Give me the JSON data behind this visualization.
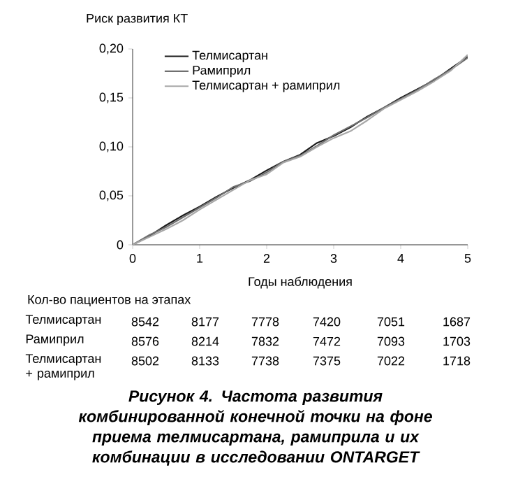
{
  "chart_data": {
    "type": "line",
    "title": "Рисунок 4. Частота развития комбинированной конечной точки на фоне приема телмисартана, рамиприла и их комбинации в исследовании ONTARGET",
    "ylabel": "Риск развития КТ",
    "xlabel": "Годы наблюдения",
    "x": [
      0,
      0.25,
      0.5,
      0.75,
      1,
      1.25,
      1.5,
      1.75,
      2,
      2.25,
      2.5,
      2.75,
      3,
      3.25,
      3.5,
      3.75,
      4,
      4.25,
      4.5,
      4.75,
      5
    ],
    "series": [
      {
        "name": "Телмисартан",
        "color": "#1a1a1a",
        "values": [
          0,
          0.009,
          0.02,
          0.03,
          0.039,
          0.049,
          0.058,
          0.066,
          0.076,
          0.085,
          0.092,
          0.104,
          0.111,
          0.12,
          0.131,
          0.14,
          0.15,
          0.159,
          0.168,
          0.18,
          0.192
        ]
      },
      {
        "name": "Рамиприл",
        "color": "#707070",
        "values": [
          0,
          0.01,
          0.018,
          0.028,
          0.038,
          0.048,
          0.059,
          0.065,
          0.074,
          0.085,
          0.091,
          0.101,
          0.112,
          0.121,
          0.13,
          0.14,
          0.149,
          0.158,
          0.169,
          0.179,
          0.191
        ]
      },
      {
        "name": "Телмисартан + рамиприл",
        "color": "#a8a8a8",
        "values": [
          0,
          0.008,
          0.016,
          0.025,
          0.036,
          0.046,
          0.056,
          0.066,
          0.072,
          0.084,
          0.09,
          0.1,
          0.109,
          0.116,
          0.127,
          0.139,
          0.148,
          0.157,
          0.167,
          0.178,
          0.194
        ]
      }
    ],
    "xlim": [
      0,
      5
    ],
    "ylim": [
      0,
      0.2
    ],
    "xticks": [
      0,
      1,
      2,
      3,
      4,
      5
    ],
    "yticks": [
      {
        "value": 0,
        "label": "0"
      },
      {
        "value": 0.05,
        "label": "0,05"
      },
      {
        "value": 0.1,
        "label": "0,10"
      },
      {
        "value": 0.15,
        "label": "0,15"
      },
      {
        "value": 0.2,
        "label": "0,20"
      }
    ],
    "legend": "top left",
    "marker": "none",
    "line_style": "solid",
    "grid": false,
    "annotations": [
      "Кол-во пациентов на этапах",
      "Телмисартан",
      "8542",
      "8177",
      "7778",
      "7420",
      "7051",
      "1687",
      "Рамиприл",
      "8576",
      "8214",
      "7832",
      "7472",
      "7093",
      "1703",
      "Телмисартан + рамиприл",
      "8502",
      "8133",
      "7738",
      "7375",
      "7022",
      "1718"
    ]
  }
}
